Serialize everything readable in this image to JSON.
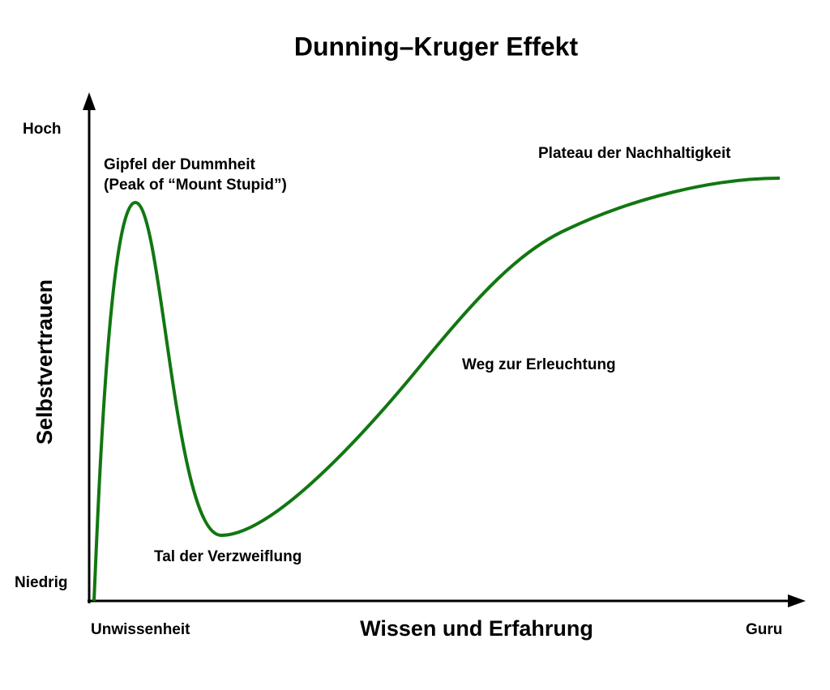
{
  "title": "Dunning–Kruger Effekt",
  "y_axis": {
    "label": "Selbstvertrauen",
    "high": "Hoch",
    "low": "Niedrig"
  },
  "x_axis": {
    "label": "Wissen und Erfahrung",
    "start": "Unwissenheit",
    "end": "Guru"
  },
  "annotations": [
    {
      "lines": [
        "Gipfel der Dummheit",
        "(Peak of “Mount Stupid”)"
      ]
    },
    {
      "lines": [
        "Tal der Verzweiflung"
      ]
    },
    {
      "lines": [
        "Weg zur Erleuchtung"
      ]
    },
    {
      "lines": [
        "Plateau der Nachhaltigkeit"
      ]
    }
  ]
}
